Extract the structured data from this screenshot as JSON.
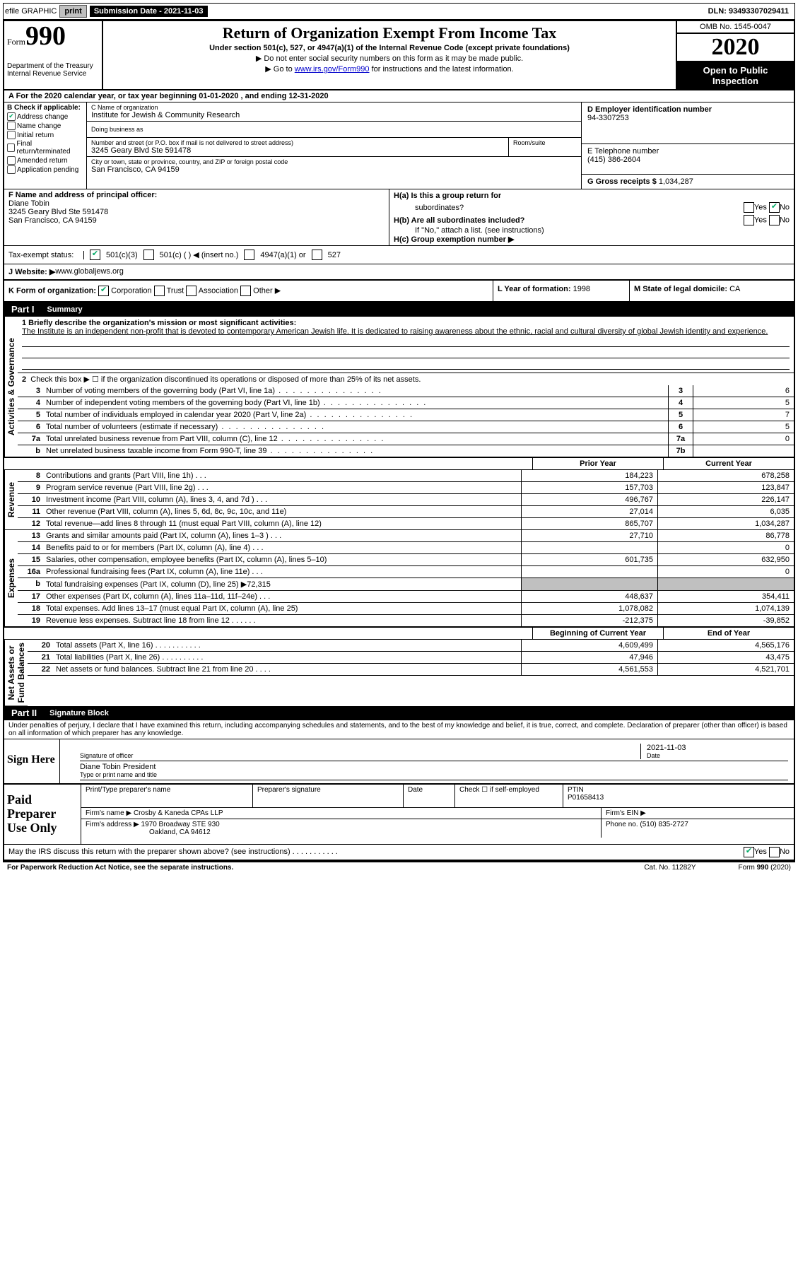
{
  "topbar": {
    "efile": "efile GRAPHIC",
    "print": "print",
    "sub_label": "Submission Date - 2021-11-03",
    "dln": "DLN: 93493307029411"
  },
  "header": {
    "form_label": "Form",
    "form_num": "990",
    "dept": "Department of the Treasury",
    "irs": "Internal Revenue Service",
    "title": "Return of Organization Exempt From Income Tax",
    "sub1": "Under section 501(c), 527, or 4947(a)(1) of the Internal Revenue Code (except private foundations)",
    "sub2": "▶ Do not enter social security numbers on this form as it may be made public.",
    "sub3_pre": "▶ Go to ",
    "sub3_link": "www.irs.gov/Form990",
    "sub3_post": " for instructions and the latest information.",
    "omb": "OMB No. 1545-0047",
    "year": "2020",
    "inspection1": "Open to Public",
    "inspection2": "Inspection"
  },
  "row_a": "A For the 2020 calendar year, or tax year beginning 01-01-2020    , and ending 12-31-2020",
  "section_b": {
    "check_header": "B Check if applicable:",
    "opts": {
      "address": "Address change",
      "name": "Name change",
      "initial": "Initial return",
      "final": "Final return/terminated",
      "amended": "Amended return",
      "app": "Application pending"
    },
    "c_label": "C Name of organization",
    "org_name": "Institute for Jewish & Community Research",
    "dba_label": "Doing business as",
    "addr_label": "Number and street (or P.O. box if mail is not delivered to street address)",
    "addr": "3245 Geary Blvd Ste 591478",
    "room_label": "Room/suite",
    "city_label": "City or town, state or province, country, and ZIP or foreign postal code",
    "city": "San Francisco, CA  94159",
    "d_label": "D Employer identification number",
    "ein": "94-3307253",
    "e_label": "E Telephone number",
    "tel": "(415) 386-2604",
    "g_label": "G Gross receipts $",
    "gross": "1,034,287"
  },
  "section_f": {
    "label": "F  Name and address of principal officer:",
    "name": "Diane Tobin",
    "addr1": "3245 Geary Blvd Ste 591478",
    "addr2": "San Francisco, CA  94159",
    "ha_label": "H(a)  Is this a group return for",
    "ha_sub": "subordinates?",
    "hb_label": "H(b)  Are all subordinates included?",
    "hb_note": "If \"No,\" attach a list. (see instructions)",
    "hc_label": "H(c)  Group exemption number ▶",
    "yes": "Yes",
    "no": "No"
  },
  "tax_status": {
    "label": "Tax-exempt status:",
    "o1": "501(c)(3)",
    "o2": "501(c) (  ) ◀ (insert no.)",
    "o3": "4947(a)(1) or",
    "o4": "527"
  },
  "website": {
    "label": "J  Website: ▶",
    "val": " www.globaljews.org"
  },
  "row_k": {
    "k_label": "K Form of organization:",
    "corp": "Corporation",
    "trust": "Trust",
    "assoc": "Association",
    "other": "Other ▶",
    "l_label": "L Year of formation:",
    "l_val": "1998",
    "m_label": "M State of legal domicile:",
    "m_val": "CA"
  },
  "part1": {
    "label": "Part I",
    "title": "Summary",
    "q1_label": "1  Briefly describe the organization's mission or most significant activities:",
    "q1_text": "The Institute is an independent non-profit that is devoted to contemporary American Jewish life. It is dedicated to raising awareness about the ethnic, racial and cultural diversity of global Jewish identity and experience.",
    "q2": "Check this box ▶ ☐  if the organization discontinued its operations or disposed of more than 25% of its net assets.",
    "rows_ag": [
      {
        "n": "3",
        "d": "Number of voting members of the governing body (Part VI, line 1a)",
        "b": "3",
        "v": "6"
      },
      {
        "n": "4",
        "d": "Number of independent voting members of the governing body (Part VI, line 1b)",
        "b": "4",
        "v": "5"
      },
      {
        "n": "5",
        "d": "Total number of individuals employed in calendar year 2020 (Part V, line 2a)",
        "b": "5",
        "v": "7"
      },
      {
        "n": "6",
        "d": "Total number of volunteers (estimate if necessary)",
        "b": "6",
        "v": "5"
      },
      {
        "n": "7a",
        "d": "Total unrelated business revenue from Part VIII, column (C), line 12",
        "b": "7a",
        "v": "0"
      },
      {
        "n": "b",
        "d": "Net unrelated business taxable income from Form 990-T, line 39",
        "b": "7b",
        "v": ""
      }
    ],
    "hdr_prior": "Prior Year",
    "hdr_curr": "Current Year",
    "revenue": [
      {
        "n": "8",
        "d": "Contributions and grants (Part VIII, line 1h)   .    .    .",
        "p": "184,223",
        "c": "678,258"
      },
      {
        "n": "9",
        "d": "Program service revenue (Part VIII, line 2g)   .    .    .",
        "p": "157,703",
        "c": "123,847"
      },
      {
        "n": "10",
        "d": "Investment income (Part VIII, column (A), lines 3, 4, and 7d )    .    .    .",
        "p": "496,767",
        "c": "226,147"
      },
      {
        "n": "11",
        "d": "Other revenue (Part VIII, column (A), lines 5, 6d, 8c, 9c, 10c, and 11e)",
        "p": "27,014",
        "c": "6,035"
      },
      {
        "n": "12",
        "d": "Total revenue—add lines 8 through 11 (must equal Part VIII, column (A), line 12)",
        "p": "865,707",
        "c": "1,034,287"
      }
    ],
    "expenses": [
      {
        "n": "13",
        "d": "Grants and similar amounts paid (Part IX, column (A), lines 1–3 )   .    .    .",
        "p": "27,710",
        "c": "86,778"
      },
      {
        "n": "14",
        "d": "Benefits paid to or for members (Part IX, column (A), line 4)   .    .    .",
        "p": "",
        "c": "0"
      },
      {
        "n": "15",
        "d": "Salaries, other compensation, employee benefits (Part IX, column (A), lines 5–10)",
        "p": "601,735",
        "c": "632,950"
      },
      {
        "n": "16a",
        "d": "Professional fundraising fees (Part IX, column (A), line 11e)   .    .    .",
        "p": "",
        "c": "0"
      },
      {
        "n": "b",
        "d": "Total fundraising expenses (Part IX, column (D), line 25) ▶72,315",
        "p": "GRAY",
        "c": "GRAY"
      },
      {
        "n": "17",
        "d": "Other expenses (Part IX, column (A), lines 11a–11d, 11f–24e)   .    .    .",
        "p": "448,637",
        "c": "354,411"
      },
      {
        "n": "18",
        "d": "Total expenses. Add lines 13–17 (must equal Part IX, column (A), line 25)",
        "p": "1,078,082",
        "c": "1,074,139"
      },
      {
        "n": "19",
        "d": "Revenue less expenses. Subtract line 18 from line 12   .    .    .    .    .    .",
        "p": "-212,375",
        "c": "-39,852"
      }
    ],
    "hdr_begin": "Beginning of Current Year",
    "hdr_end": "End of Year",
    "netassets": [
      {
        "n": "20",
        "d": "Total assets (Part X, line 16)  .    .    .    .    .    .    .    .    .    .    .",
        "p": "4,609,499",
        "c": "4,565,176"
      },
      {
        "n": "21",
        "d": "Total liabilities (Part X, line 26)  .    .    .    .    .    .    .    .    .    .",
        "p": "47,946",
        "c": "43,475"
      },
      {
        "n": "22",
        "d": "Net assets or fund balances. Subtract line 21 from line 20   .    .    .    .",
        "p": "4,561,553",
        "c": "4,521,701"
      }
    ],
    "vlabels": {
      "ag": "Activities & Governance",
      "rev": "Revenue",
      "exp": "Expenses",
      "na": "Net Assets or\nFund Balances"
    }
  },
  "part2": {
    "label": "Part II",
    "title": "Signature Block",
    "pen": "Under penalties of perjury, I declare that I have examined this return, including accompanying schedules and statements, and to the best of my knowledge and belief, it is true, correct, and complete. Declaration of preparer (other than officer) is based on all information of which preparer has any knowledge.",
    "sign_here": "Sign Here",
    "sig_officer": "Signature of officer",
    "date_label": "Date",
    "date_val": "2021-11-03",
    "name_title": "Diane Tobin  President",
    "name_title_label": "Type or print name and title",
    "paid": "Paid Preparer Use Only",
    "pt_name": "Print/Type preparer's name",
    "pt_sig": "Preparer's signature",
    "pt_date": "Date",
    "check_self": "Check ☐ if self-employed",
    "ptin_label": "PTIN",
    "ptin": "P01658413",
    "firm_name_label": "Firm's name    ▶",
    "firm_name": "Crosby & Kaneda CPAs LLP",
    "firm_ein_label": "Firm's EIN ▶",
    "firm_addr_label": "Firm's address ▶",
    "firm_addr1": "1970 Broadway STE 930",
    "firm_addr2": "Oakland, CA  94612",
    "firm_phone_label": "Phone no.",
    "firm_phone": "(510) 835-2727",
    "irs_discuss": "May the IRS discuss this return with the preparer shown above? (see instructions)   .    .    .    .    .    .    .    .    .    .    .",
    "yes": "Yes",
    "no": "No"
  },
  "footer": {
    "pra": "For Paperwork Reduction Act Notice, see the separate instructions.",
    "cat": "Cat. No. 11282Y",
    "form": "Form 990 (2020)"
  }
}
